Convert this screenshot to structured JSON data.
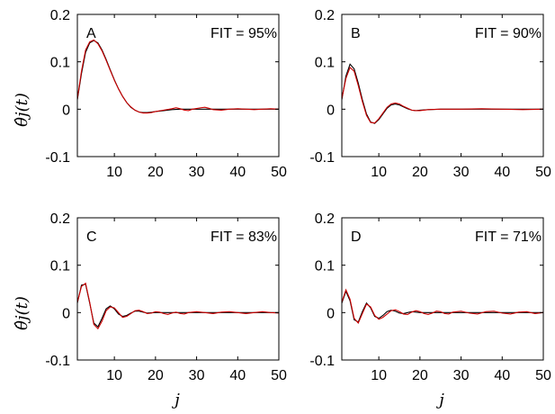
{
  "figure": {
    "ylabel": "θ̂j(t)",
    "xlabel": "j"
  },
  "chart_data": [
    {
      "type": "line",
      "panel": "A",
      "fit_label": "FIT = 95%",
      "xlim": [
        1,
        50
      ],
      "ylim": [
        -0.1,
        0.2
      ],
      "xticks": [
        10,
        20,
        30,
        40,
        50
      ],
      "yticks": [
        -0.1,
        0,
        0.1,
        0.2
      ],
      "ytick_labels": [
        "-0.1",
        "0",
        "0.1",
        "0.2"
      ],
      "series": [
        {
          "color": "#000000",
          "points": [
            [
              1,
              0.02
            ],
            [
              2,
              0.075
            ],
            [
              3,
              0.12
            ],
            [
              4,
              0.14
            ],
            [
              5,
              0.145
            ],
            [
              6,
              0.14
            ],
            [
              7,
              0.125
            ],
            [
              8,
              0.105
            ],
            [
              9,
              0.083
            ],
            [
              10,
              0.062
            ],
            [
              11,
              0.043
            ],
            [
              12,
              0.027
            ],
            [
              13,
              0.014
            ],
            [
              14,
              0.004
            ],
            [
              15,
              -0.002
            ],
            [
              16,
              -0.006
            ],
            [
              17,
              -0.007
            ],
            [
              18,
              -0.007
            ],
            [
              19,
              -0.006
            ],
            [
              20,
              -0.005
            ],
            [
              22,
              -0.003
            ],
            [
              24,
              -0.001
            ],
            [
              26,
              0.0
            ],
            [
              28,
              0.0
            ],
            [
              30,
              0.0
            ],
            [
              35,
              0.0
            ],
            [
              40,
              0.0
            ],
            [
              45,
              0.0
            ],
            [
              50,
              0.0
            ]
          ]
        },
        {
          "color": "#cc0000",
          "points": [
            [
              1,
              0.022
            ],
            [
              2,
              0.08
            ],
            [
              3,
              0.125
            ],
            [
              4,
              0.142
            ],
            [
              5,
              0.146
            ],
            [
              6,
              0.138
            ],
            [
              7,
              0.123
            ],
            [
              8,
              0.103
            ],
            [
              9,
              0.082
            ],
            [
              10,
              0.061
            ],
            [
              11,
              0.043
            ],
            [
              12,
              0.027
            ],
            [
              13,
              0.014
            ],
            [
              14,
              0.005
            ],
            [
              15,
              -0.002
            ],
            [
              16,
              -0.006
            ],
            [
              17,
              -0.008
            ],
            [
              18,
              -0.008
            ],
            [
              19,
              -0.007
            ],
            [
              20,
              -0.005
            ],
            [
              22,
              -0.002
            ],
            [
              24,
              0.001
            ],
            [
              25,
              0.003
            ],
            [
              26,
              0.001
            ],
            [
              27,
              -0.002
            ],
            [
              28,
              -0.003
            ],
            [
              29,
              0.0
            ],
            [
              31,
              0.003
            ],
            [
              32,
              0.004
            ],
            [
              33,
              0.002
            ],
            [
              34,
              -0.001
            ],
            [
              36,
              -0.002
            ],
            [
              38,
              0.0
            ],
            [
              40,
              0.001
            ],
            [
              42,
              0.0
            ],
            [
              44,
              -0.001
            ],
            [
              46,
              0.0
            ],
            [
              48,
              0.001
            ],
            [
              50,
              0.0
            ]
          ]
        }
      ]
    },
    {
      "type": "line",
      "panel": "B",
      "fit_label": "FIT = 90%",
      "xlim": [
        1,
        50
      ],
      "ylim": [
        -0.1,
        0.2
      ],
      "xticks": [
        10,
        20,
        30,
        40,
        50
      ],
      "yticks": [
        -0.1,
        0,
        0.1,
        0.2
      ],
      "ytick_labels": [
        "-0.1",
        "0",
        "0.1",
        "0.2"
      ],
      "series": [
        {
          "color": "#000000",
          "points": [
            [
              1,
              0.02
            ],
            [
              2,
              0.07
            ],
            [
              3,
              0.095
            ],
            [
              4,
              0.085
            ],
            [
              5,
              0.055
            ],
            [
              6,
              0.02
            ],
            [
              7,
              -0.01
            ],
            [
              8,
              -0.027
            ],
            [
              9,
              -0.03
            ],
            [
              10,
              -0.022
            ],
            [
              11,
              -0.01
            ],
            [
              12,
              0.002
            ],
            [
              13,
              0.009
            ],
            [
              14,
              0.011
            ],
            [
              15,
              0.009
            ],
            [
              16,
              0.005
            ],
            [
              17,
              0.001
            ],
            [
              18,
              -0.002
            ],
            [
              19,
              -0.003
            ],
            [
              20,
              -0.002
            ],
            [
              22,
              -0.001
            ],
            [
              25,
              0.0
            ],
            [
              30,
              0.0
            ],
            [
              35,
              0.0
            ],
            [
              40,
              0.0
            ],
            [
              45,
              0.0
            ],
            [
              50,
              0.0
            ]
          ]
        },
        {
          "color": "#cc0000",
          "points": [
            [
              1,
              0.022
            ],
            [
              2,
              0.065
            ],
            [
              3,
              0.088
            ],
            [
              4,
              0.08
            ],
            [
              5,
              0.05
            ],
            [
              6,
              0.016
            ],
            [
              7,
              -0.013
            ],
            [
              8,
              -0.028
            ],
            [
              9,
              -0.029
            ],
            [
              10,
              -0.02
            ],
            [
              11,
              -0.008
            ],
            [
              12,
              0.004
            ],
            [
              13,
              0.011
            ],
            [
              14,
              0.013
            ],
            [
              15,
              0.011
            ],
            [
              16,
              0.006
            ],
            [
              17,
              0.002
            ],
            [
              18,
              -0.002
            ],
            [
              19,
              -0.003
            ],
            [
              20,
              -0.003
            ],
            [
              22,
              -0.001
            ],
            [
              25,
              0.0
            ],
            [
              30,
              0.0
            ],
            [
              35,
              0.001
            ],
            [
              40,
              0.0
            ],
            [
              45,
              -0.001
            ],
            [
              50,
              0.0
            ]
          ]
        }
      ]
    },
    {
      "type": "line",
      "panel": "C",
      "fit_label": "FIT = 83%",
      "xlim": [
        1,
        50
      ],
      "ylim": [
        -0.1,
        0.2
      ],
      "xticks": [
        10,
        20,
        30,
        40,
        50
      ],
      "yticks": [
        -0.1,
        0,
        0.1,
        0.2
      ],
      "ytick_labels": [
        "-0.1",
        "0",
        "0.1",
        "0.2"
      ],
      "series": [
        {
          "color": "#000000",
          "points": [
            [
              1,
              0.02
            ],
            [
              2,
              0.058
            ],
            [
              3,
              0.06
            ],
            [
              4,
              0.02
            ],
            [
              5,
              -0.022
            ],
            [
              6,
              -0.03
            ],
            [
              7,
              -0.012
            ],
            [
              8,
              0.008
            ],
            [
              9,
              0.014
            ],
            [
              10,
              0.008
            ],
            [
              11,
              -0.003
            ],
            [
              12,
              -0.008
            ],
            [
              13,
              -0.006
            ],
            [
              14,
              -0.001
            ],
            [
              15,
              0.003
            ],
            [
              16,
              0.003
            ],
            [
              17,
              0.001
            ],
            [
              18,
              -0.001
            ],
            [
              20,
              0.0
            ],
            [
              25,
              0.0
            ],
            [
              30,
              0.0
            ],
            [
              35,
              0.0
            ],
            [
              40,
              0.0
            ],
            [
              45,
              0.0
            ],
            [
              50,
              0.0
            ]
          ]
        },
        {
          "color": "#cc0000",
          "points": [
            [
              1,
              0.022
            ],
            [
              2,
              0.055
            ],
            [
              3,
              0.062
            ],
            [
              4,
              0.022
            ],
            [
              5,
              -0.025
            ],
            [
              6,
              -0.034
            ],
            [
              7,
              -0.018
            ],
            [
              8,
              0.004
            ],
            [
              9,
              0.012
            ],
            [
              10,
              0.01
            ],
            [
              11,
              0.0
            ],
            [
              12,
              -0.01
            ],
            [
              13,
              -0.008
            ],
            [
              14,
              -0.002
            ],
            [
              15,
              0.004
            ],
            [
              16,
              0.005
            ],
            [
              17,
              0.002
            ],
            [
              18,
              -0.002
            ],
            [
              19,
              -0.001
            ],
            [
              20,
              0.002
            ],
            [
              21,
              0.001
            ],
            [
              22,
              -0.002
            ],
            [
              23,
              -0.004
            ],
            [
              24,
              -0.001
            ],
            [
              25,
              0.001
            ],
            [
              26,
              -0.002
            ],
            [
              27,
              -0.003
            ],
            [
              28,
              0.0
            ],
            [
              30,
              0.002
            ],
            [
              32,
              0.0
            ],
            [
              34,
              -0.002
            ],
            [
              36,
              0.001
            ],
            [
              38,
              0.002
            ],
            [
              40,
              0.0
            ],
            [
              42,
              -0.002
            ],
            [
              44,
              0.0
            ],
            [
              46,
              0.002
            ],
            [
              48,
              0.0
            ],
            [
              50,
              -0.001
            ]
          ]
        }
      ]
    },
    {
      "type": "line",
      "panel": "D",
      "fit_label": "FIT = 71%",
      "xlim": [
        1,
        50
      ],
      "ylim": [
        -0.1,
        0.2
      ],
      "xticks": [
        10,
        20,
        30,
        40,
        50
      ],
      "yticks": [
        -0.1,
        0,
        0.1,
        0.2
      ],
      "ytick_labels": [
        "-0.1",
        "0",
        "0.1",
        "0.2"
      ],
      "series": [
        {
          "color": "#000000",
          "points": [
            [
              1,
              0.02
            ],
            [
              2,
              0.045
            ],
            [
              3,
              0.025
            ],
            [
              4,
              -0.015
            ],
            [
              5,
              -0.02
            ],
            [
              6,
              0.002
            ],
            [
              7,
              0.02
            ],
            [
              8,
              0.01
            ],
            [
              9,
              -0.008
            ],
            [
              10,
              -0.012
            ],
            [
              11,
              -0.006
            ],
            [
              12,
              0.002
            ],
            [
              13,
              0.005
            ],
            [
              14,
              0.003
            ],
            [
              15,
              -0.001
            ],
            [
              16,
              -0.002
            ],
            [
              17,
              0.0
            ],
            [
              18,
              0.002
            ],
            [
              20,
              0.0
            ],
            [
              25,
              0.0
            ],
            [
              30,
              0.0
            ],
            [
              35,
              0.0
            ],
            [
              40,
              0.0
            ],
            [
              45,
              0.0
            ],
            [
              50,
              0.0
            ]
          ]
        },
        {
          "color": "#cc0000",
          "points": [
            [
              1,
              0.022
            ],
            [
              2,
              0.048
            ],
            [
              3,
              0.028
            ],
            [
              4,
              -0.012
            ],
            [
              5,
              -0.022
            ],
            [
              6,
              -0.002
            ],
            [
              7,
              0.018
            ],
            [
              8,
              0.012
            ],
            [
              9,
              -0.006
            ],
            [
              10,
              -0.014
            ],
            [
              11,
              -0.01
            ],
            [
              12,
              -0.003
            ],
            [
              13,
              0.004
            ],
            [
              14,
              0.006
            ],
            [
              15,
              0.002
            ],
            [
              16,
              -0.003
            ],
            [
              17,
              -0.004
            ],
            [
              18,
              0.001
            ],
            [
              19,
              0.004
            ],
            [
              20,
              0.002
            ],
            [
              21,
              -0.002
            ],
            [
              22,
              -0.004
            ],
            [
              23,
              -0.001
            ],
            [
              24,
              0.003
            ],
            [
              25,
              0.002
            ],
            [
              26,
              -0.002
            ],
            [
              27,
              -0.003
            ],
            [
              28,
              0.001
            ],
            [
              30,
              0.003
            ],
            [
              32,
              -0.001
            ],
            [
              34,
              -0.003
            ],
            [
              36,
              0.002
            ],
            [
              38,
              0.003
            ],
            [
              40,
              -0.001
            ],
            [
              42,
              -0.003
            ],
            [
              44,
              0.001
            ],
            [
              46,
              0.002
            ],
            [
              48,
              -0.002
            ],
            [
              50,
              0.0
            ]
          ]
        }
      ]
    }
  ]
}
